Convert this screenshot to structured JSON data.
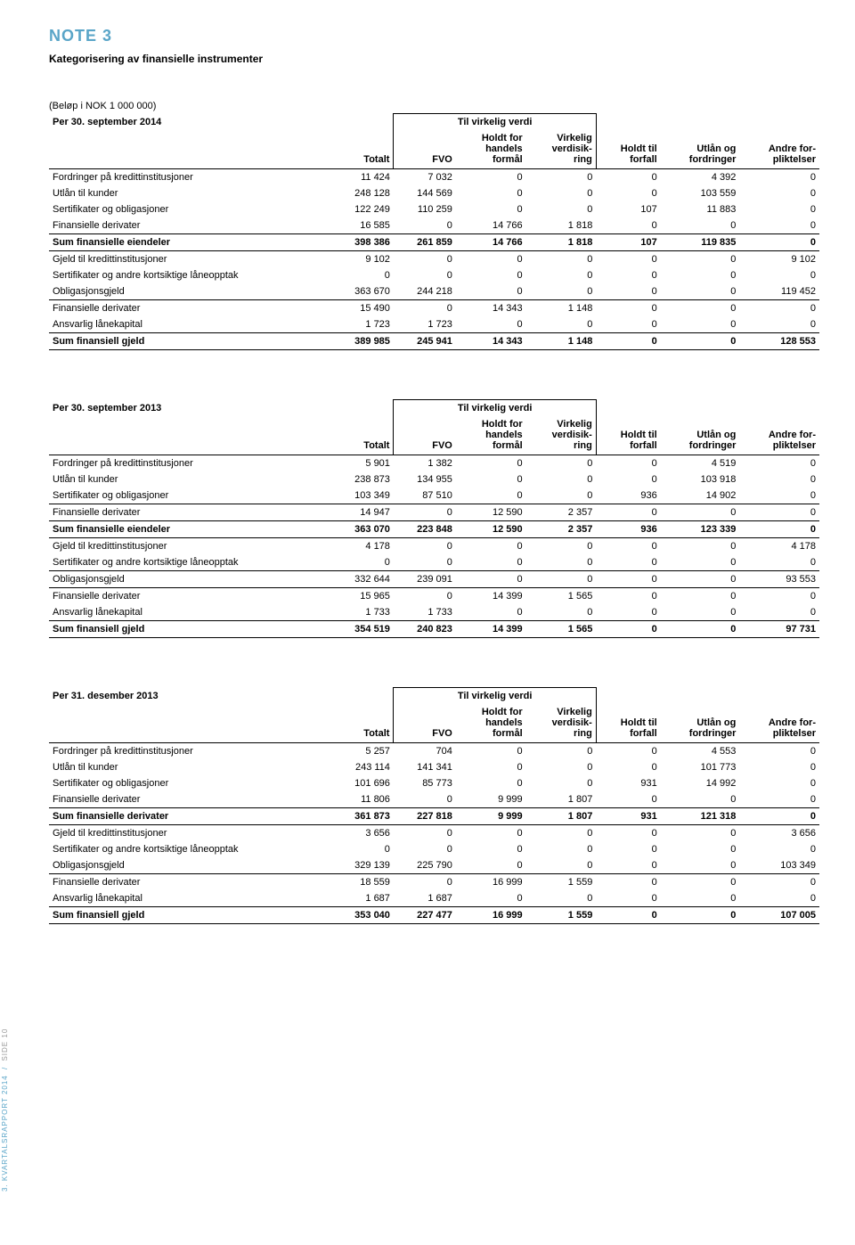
{
  "header": {
    "note_title": "NOTE 3",
    "note_subtitle": "Kategorisering av finansielle instrumenter",
    "unit_label": "(Beløp i NOK 1 000 000)"
  },
  "colhead": {
    "group_label": "Til virkelig verdi",
    "totalt": "Totalt",
    "fvo": "FVO",
    "holdt_for": "Holdt for handels formål",
    "virkelig": "Virkelig verdisik-ring",
    "holdt_til": "Holdt til forfall",
    "utlan_og": "Utlån og fordringer",
    "andre": "Andre for-pliktelser"
  },
  "tables": [
    {
      "period": "Per 30. september 2014",
      "rows": [
        {
          "label": "Fordringer på kredittinstitusjoner",
          "v": [
            "11 424",
            "7 032",
            "0",
            "0",
            "0",
            "4 392",
            "0"
          ],
          "bold": false,
          "rule": false
        },
        {
          "label": "Utlån til kunder",
          "v": [
            "248 128",
            "144 569",
            "0",
            "0",
            "0",
            "103 559",
            "0"
          ],
          "bold": false,
          "rule": false
        },
        {
          "label": "Sertifikater og obligasjoner",
          "v": [
            "122 249",
            "110 259",
            "0",
            "0",
            "107",
            "11 883",
            "0"
          ],
          "bold": false,
          "rule": false
        },
        {
          "label": "Finansielle derivater",
          "v": [
            "16 585",
            "0",
            "14 766",
            "1 818",
            "0",
            "0",
            "0"
          ],
          "bold": false,
          "rule": true
        },
        {
          "label": "Sum finansielle eiendeler",
          "v": [
            "398 386",
            "261 859",
            "14 766",
            "1 818",
            "107",
            "119 835",
            "0"
          ],
          "bold": true,
          "rule": true
        },
        {
          "label": "Gjeld til kredittinstitusjoner",
          "v": [
            "9 102",
            "0",
            "0",
            "0",
            "0",
            "0",
            "9 102"
          ],
          "bold": false,
          "rule": false
        },
        {
          "label": "Sertifikater og andre kortsiktige låneopptak",
          "v": [
            "0",
            "0",
            "0",
            "0",
            "0",
            "0",
            "0"
          ],
          "bold": false,
          "rule": false
        },
        {
          "label": "Obligasjonsgjeld",
          "v": [
            "363 670",
            "244 218",
            "0",
            "0",
            "0",
            "0",
            "119 452"
          ],
          "bold": false,
          "rule": true
        },
        {
          "label": "Finansielle derivater",
          "v": [
            "15 490",
            "0",
            "14 343",
            "1 148",
            "0",
            "0",
            "0"
          ],
          "bold": false,
          "rule": false
        },
        {
          "label": "Ansvarlig lånekapital",
          "v": [
            "1 723",
            "1 723",
            "0",
            "0",
            "0",
            "0",
            "0"
          ],
          "bold": false,
          "rule": true
        },
        {
          "label": "Sum finansiell gjeld",
          "v": [
            "389 985",
            "245 941",
            "14 343",
            "1 148",
            "0",
            "0",
            "128 553"
          ],
          "bold": true,
          "rule": true
        }
      ]
    },
    {
      "period": "Per 30. september 2013",
      "rows": [
        {
          "label": "Fordringer på kredittinstitusjoner",
          "v": [
            "5 901",
            "1 382",
            "0",
            "0",
            "0",
            "4 519",
            "0"
          ],
          "bold": false,
          "rule": false
        },
        {
          "label": "Utlån til kunder",
          "v": [
            "238 873",
            "134 955",
            "0",
            "0",
            "0",
            "103 918",
            "0"
          ],
          "bold": false,
          "rule": false
        },
        {
          "label": "Sertifikater og obligasjoner",
          "v": [
            "103 349",
            "87 510",
            "0",
            "0",
            "936",
            "14 902",
            "0"
          ],
          "bold": false,
          "rule": true
        },
        {
          "label": "Finansielle derivater",
          "v": [
            "14 947",
            "0",
            "12 590",
            "2 357",
            "0",
            "0",
            "0"
          ],
          "bold": false,
          "rule": true
        },
        {
          "label": "Sum finansielle eiendeler",
          "v": [
            "363 070",
            "223 848",
            "12 590",
            "2 357",
            "936",
            "123 339",
            "0"
          ],
          "bold": true,
          "rule": true
        },
        {
          "label": "Gjeld til kredittinstitusjoner",
          "v": [
            "4 178",
            "0",
            "0",
            "0",
            "0",
            "0",
            "4 178"
          ],
          "bold": false,
          "rule": false
        },
        {
          "label": "Sertifikater og andre kortsiktige låneopptak",
          "v": [
            "0",
            "0",
            "0",
            "0",
            "0",
            "0",
            "0"
          ],
          "bold": false,
          "rule": true
        },
        {
          "label": "Obligasjonsgjeld",
          "v": [
            "332 644",
            "239 091",
            "0",
            "0",
            "0",
            "0",
            "93 553"
          ],
          "bold": false,
          "rule": true
        },
        {
          "label": "Finansielle derivater",
          "v": [
            "15 965",
            "0",
            "14 399",
            "1 565",
            "0",
            "0",
            "0"
          ],
          "bold": false,
          "rule": false
        },
        {
          "label": "Ansvarlig lånekapital",
          "v": [
            "1 733",
            "1 733",
            "0",
            "0",
            "0",
            "0",
            "0"
          ],
          "bold": false,
          "rule": true
        },
        {
          "label": "Sum finansiell gjeld",
          "v": [
            "354 519",
            "240 823",
            "14 399",
            "1 565",
            "0",
            "0",
            "97 731"
          ],
          "bold": true,
          "rule": true
        }
      ]
    },
    {
      "period": "Per 31. desember 2013",
      "rows": [
        {
          "label": "Fordringer på kredittinstitusjoner",
          "v": [
            "5 257",
            "704",
            "0",
            "0",
            "0",
            "4 553",
            "0"
          ],
          "bold": false,
          "rule": false
        },
        {
          "label": "Utlån til kunder",
          "v": [
            "243 114",
            "141 341",
            "0",
            "0",
            "0",
            "101 773",
            "0"
          ],
          "bold": false,
          "rule": false
        },
        {
          "label": "Sertifikater og obligasjoner",
          "v": [
            "101 696",
            "85 773",
            "0",
            "0",
            "931",
            "14 992",
            "0"
          ],
          "bold": false,
          "rule": false
        },
        {
          "label": "Finansielle derivater",
          "v": [
            "11 806",
            "0",
            "9 999",
            "1 807",
            "0",
            "0",
            "0"
          ],
          "bold": false,
          "rule": true
        },
        {
          "label": "Sum finansielle derivater",
          "v": [
            "361 873",
            "227 818",
            "9 999",
            "1 807",
            "931",
            "121 318",
            "0"
          ],
          "bold": true,
          "rule": true
        },
        {
          "label": "Gjeld til kredittinstitusjoner",
          "v": [
            "3 656",
            "0",
            "0",
            "0",
            "0",
            "0",
            "3 656"
          ],
          "bold": false,
          "rule": false
        },
        {
          "label": "Sertifikater og andre kortsiktige låneopptak",
          "v": [
            "0",
            "0",
            "0",
            "0",
            "0",
            "0",
            "0"
          ],
          "bold": false,
          "rule": false
        },
        {
          "label": "Obligasjonsgjeld",
          "v": [
            "329 139",
            "225 790",
            "0",
            "0",
            "0",
            "0",
            "103 349"
          ],
          "bold": false,
          "rule": true
        },
        {
          "label": "Finansielle derivater",
          "v": [
            "18 559",
            "0",
            "16 999",
            "1 559",
            "0",
            "0",
            "0"
          ],
          "bold": false,
          "rule": false
        },
        {
          "label": "Ansvarlig lånekapital",
          "v": [
            "1 687",
            "1 687",
            "0",
            "0",
            "0",
            "0",
            "0"
          ],
          "bold": false,
          "rule": true
        },
        {
          "label": "Sum finansiell gjeld",
          "v": [
            "353 040",
            "227 477",
            "16 999",
            "1 559",
            "0",
            "0",
            "107 005"
          ],
          "bold": true,
          "rule": true
        }
      ]
    }
  ],
  "side": {
    "report": "3. KVARTALSRAPPORT 2014",
    "page": "SIDE 10"
  }
}
